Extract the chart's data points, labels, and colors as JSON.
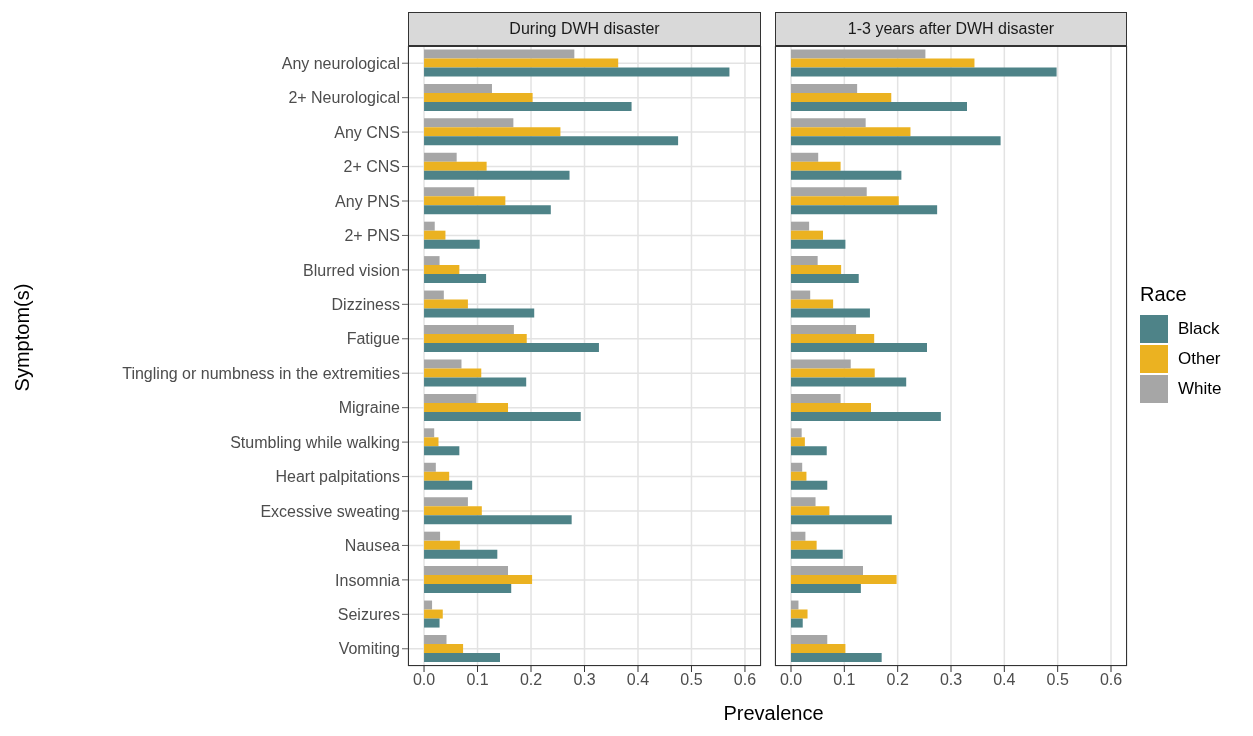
{
  "chart_data": [
    {
      "type": "bar",
      "orientation": "horizontal",
      "title": "During DWH disaster",
      "xlabel": "Prevalence",
      "ylabel": "Symptom(s)",
      "categories": [
        "Any neurological",
        "2+ Neurological",
        "Any CNS",
        "2+ CNS",
        "Any PNS",
        "2+ PNS",
        "Blurred vision",
        "Dizziness",
        "Fatigue",
        "Tingling or numbness in the extremities",
        "Migraine",
        "Stumbling while walking",
        "Heart palpitations",
        "Excessive sweating",
        "Nausea",
        "Insomnia",
        "Seizures",
        "Vomiting"
      ],
      "series": [
        {
          "name": "Black",
          "color": "#4e8388",
          "values": [
            0.571,
            0.388,
            0.475,
            0.272,
            0.237,
            0.104,
            0.116,
            0.206,
            0.327,
            0.191,
            0.293,
            0.066,
            0.09,
            0.276,
            0.137,
            0.163,
            0.029,
            0.142
          ]
        },
        {
          "name": "Other",
          "color": "#ebb221",
          "values": [
            0.363,
            0.203,
            0.255,
            0.117,
            0.152,
            0.04,
            0.066,
            0.082,
            0.192,
            0.107,
            0.157,
            0.027,
            0.047,
            0.108,
            0.067,
            0.202,
            0.035,
            0.073
          ]
        },
        {
          "name": "White",
          "color": "#a6a6a6",
          "values": [
            0.281,
            0.127,
            0.167,
            0.061,
            0.094,
            0.02,
            0.029,
            0.037,
            0.168,
            0.07,
            0.098,
            0.019,
            0.022,
            0.082,
            0.03,
            0.157,
            0.015,
            0.042
          ]
        }
      ],
      "xlim": [
        -0.03,
        0.63
      ],
      "xticks": [
        {
          "value": 0,
          "label": "0.0"
        },
        0.1,
        0.2,
        0.3,
        0.4,
        0.5,
        0.6
      ],
      "grid": true,
      "legend": "right",
      "legend_title": "Race"
    },
    {
      "type": "bar",
      "orientation": "horizontal",
      "title": "1-3 years after DWH disaster",
      "tick_labels": "x",
      "categories": [
        null,
        null,
        null,
        null,
        null,
        null,
        null,
        null,
        null,
        null,
        null,
        null,
        null,
        null,
        null,
        null,
        null,
        null
      ],
      "series": [
        {
          "color": "#4e8388",
          "values": [
            0.498,
            0.33,
            0.393,
            0.207,
            0.274,
            0.102,
            0.127,
            0.148,
            0.255,
            0.216,
            0.281,
            0.067,
            0.068,
            0.189,
            0.097,
            0.131,
            0.022,
            0.17
          ]
        },
        {
          "color": "#ebb221",
          "values": [
            0.344,
            0.188,
            0.224,
            0.093,
            0.202,
            0.06,
            0.094,
            0.079,
            0.156,
            0.157,
            0.15,
            0.026,
            0.029,
            0.072,
            0.048,
            0.198,
            0.031,
            0.102
          ]
        },
        {
          "color": "#a6a6a6",
          "values": [
            0.252,
            0.124,
            0.14,
            0.051,
            0.142,
            0.034,
            0.05,
            0.036,
            0.122,
            0.112,
            0.093,
            0.02,
            0.021,
            0.046,
            0.027,
            0.135,
            0.014,
            0.068
          ]
        }
      ],
      "xlim": [
        -0.03,
        0.63
      ],
      "xticks": [
        {
          "value": 0,
          "label": "0.0"
        },
        0.1,
        0.2,
        0.3,
        0.4,
        0.5,
        0.6
      ],
      "grid": true
    }
  ]
}
